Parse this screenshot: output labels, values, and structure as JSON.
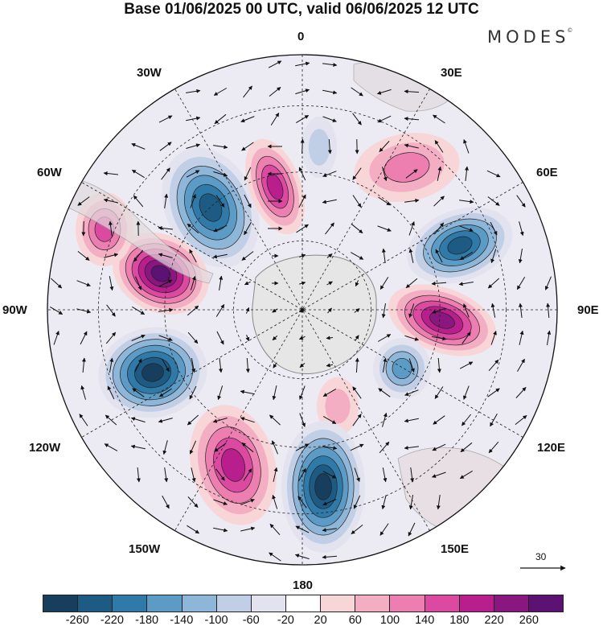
{
  "title": "Base 01/06/2025 00 UTC, valid 06/06/2025 12 UTC",
  "brand": {
    "name": "MODES",
    "mark": "©"
  },
  "longitude_labels": {
    "lon_0": "0",
    "lon_30e": "30E",
    "lon_60e": "60E",
    "lon_90e": "90E",
    "lon_120e": "120E",
    "lon_150e": "150E",
    "lon_180": "180",
    "lon_150w": "150W",
    "lon_120w": "120W",
    "lon_90w": "90W",
    "lon_60w": "60W",
    "lon_30w": "30W"
  },
  "reference_vector": {
    "label": "30"
  },
  "colorbar": {
    "tick_labels": [
      "-260",
      "-220",
      "-180",
      "-140",
      "-100",
      "-60",
      "-20",
      "20",
      "60",
      "100",
      "140",
      "180",
      "220",
      "260"
    ],
    "colors": [
      "#173e5c",
      "#1d5b84",
      "#2f7aa8",
      "#5b9bc6",
      "#8db6d8",
      "#c1cfe6",
      "#e3e3f0",
      "#ffffff",
      "#f8d6d8",
      "#f4aec3",
      "#ec7fb0",
      "#db4aa0",
      "#b81f8c",
      "#8a177f",
      "#5b1273"
    ]
  },
  "map": {
    "projection": "south-polar-stereographic",
    "field_anomalies": [
      {
        "label": "neg",
        "value": -240
      },
      {
        "label": "pos",
        "value": 200
      },
      {
        "label": "neg",
        "value": -60
      },
      {
        "label": "pos",
        "value": 120
      },
      {
        "label": "neg",
        "value": -220
      },
      {
        "label": "pos",
        "value": 240
      },
      {
        "label": "neg",
        "value": -140
      },
      {
        "label": "pos",
        "value": 80
      },
      {
        "label": "neg",
        "value": -260
      },
      {
        "label": "pos",
        "value": 200
      },
      {
        "label": "neg",
        "value": -260
      },
      {
        "label": "pos",
        "value": 260
      },
      {
        "label": "pos",
        "value": 140
      }
    ]
  }
}
